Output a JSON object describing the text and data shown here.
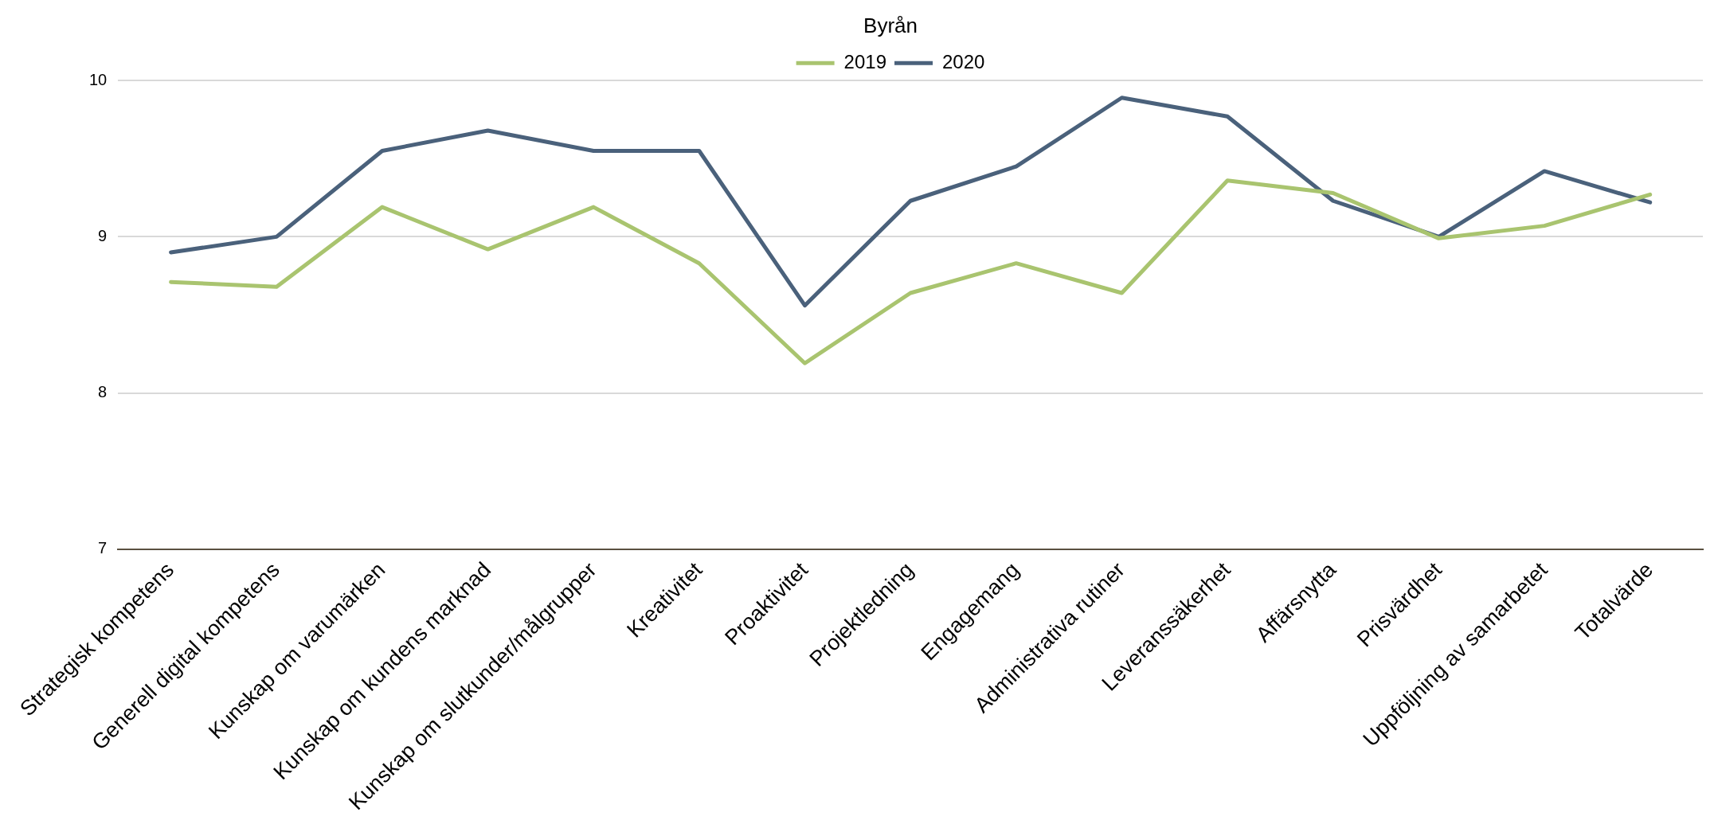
{
  "chart_data": {
    "type": "line",
    "title": "Byrån",
    "categories": [
      "Strategisk kompetens",
      "Generell digital kompetens",
      "Kunskap om varumärken",
      "Kunskap om kundens marknad",
      "Kunskap om slutkunder/målgrupper",
      "Kreativitet",
      "Proaktivitet",
      "Projektledning",
      "Engagemang",
      "Administrativa rutiner",
      "Leveranssäkerhet",
      "Affärsnytta",
      "Prisvärdhet",
      "Uppföljning av samarbetet",
      "Totalvärde"
    ],
    "series": [
      {
        "name": "2019",
        "color": "#a9c46f",
        "values": [
          8.71,
          8.68,
          9.19,
          8.92,
          9.19,
          8.83,
          8.19,
          8.64,
          8.83,
          8.64,
          9.36,
          9.28,
          8.99,
          9.07,
          9.27
        ]
      },
      {
        "name": "2020",
        "color": "#4a617b",
        "values": [
          8.9,
          9.0,
          9.55,
          9.68,
          9.55,
          9.55,
          8.56,
          9.23,
          9.45,
          9.89,
          9.77,
          9.23,
          9.0,
          9.42,
          9.22
        ]
      }
    ],
    "ylim": [
      7,
      10
    ],
    "yticks": [
      7,
      8,
      9,
      10
    ],
    "grid": "y",
    "legend": "top",
    "marker": "none",
    "line_style": "solid"
  }
}
